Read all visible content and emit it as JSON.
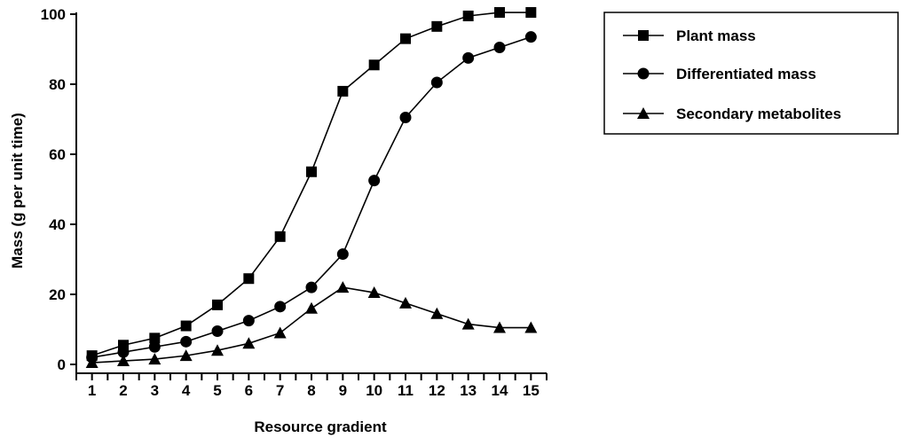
{
  "chart_data": {
    "type": "line",
    "title": "",
    "xlabel": "Resource gradient",
    "ylabel": "Mass (g per unit time)",
    "x": [
      1,
      2,
      3,
      4,
      5,
      6,
      7,
      8,
      9,
      10,
      11,
      12,
      13,
      14,
      15
    ],
    "x_tick_labels": [
      "1",
      "2",
      "3",
      "4",
      "5",
      "6",
      "7",
      "8",
      "9",
      "10",
      "11",
      "12",
      "13",
      "14",
      "15"
    ],
    "xlim": [
      0.5,
      15.5
    ],
    "ylim": [
      0,
      100
    ],
    "y_ticks": [
      0,
      20,
      40,
      60,
      80,
      100
    ],
    "y_tick_labels": [
      "0",
      "20",
      "40",
      "60",
      "80",
      "100"
    ],
    "grid": false,
    "legend_position": "top-right",
    "series": [
      {
        "name": "Plant mass",
        "marker": "square",
        "values": [
          2.5,
          5.5,
          7.5,
          11,
          17,
          24.5,
          36.5,
          55,
          78,
          85.5,
          93,
          96.5,
          99.5,
          100.5,
          100.5
        ]
      },
      {
        "name": "Differentiated mass",
        "marker": "circle",
        "values": [
          2,
          3.5,
          5,
          6.5,
          9.5,
          12.5,
          16.5,
          22,
          31.5,
          52.5,
          70.5,
          80.5,
          87.5,
          90.5,
          93.5
        ]
      },
      {
        "name": "Secondary metabolites",
        "marker": "triangle",
        "values": [
          0.5,
          1,
          1.5,
          2.5,
          4,
          6,
          9,
          16,
          22,
          20.5,
          17.5,
          14.5,
          11.5,
          10.5,
          10.5
        ]
      }
    ],
    "colors": {
      "line": "#000000",
      "background": "#ffffff"
    }
  }
}
